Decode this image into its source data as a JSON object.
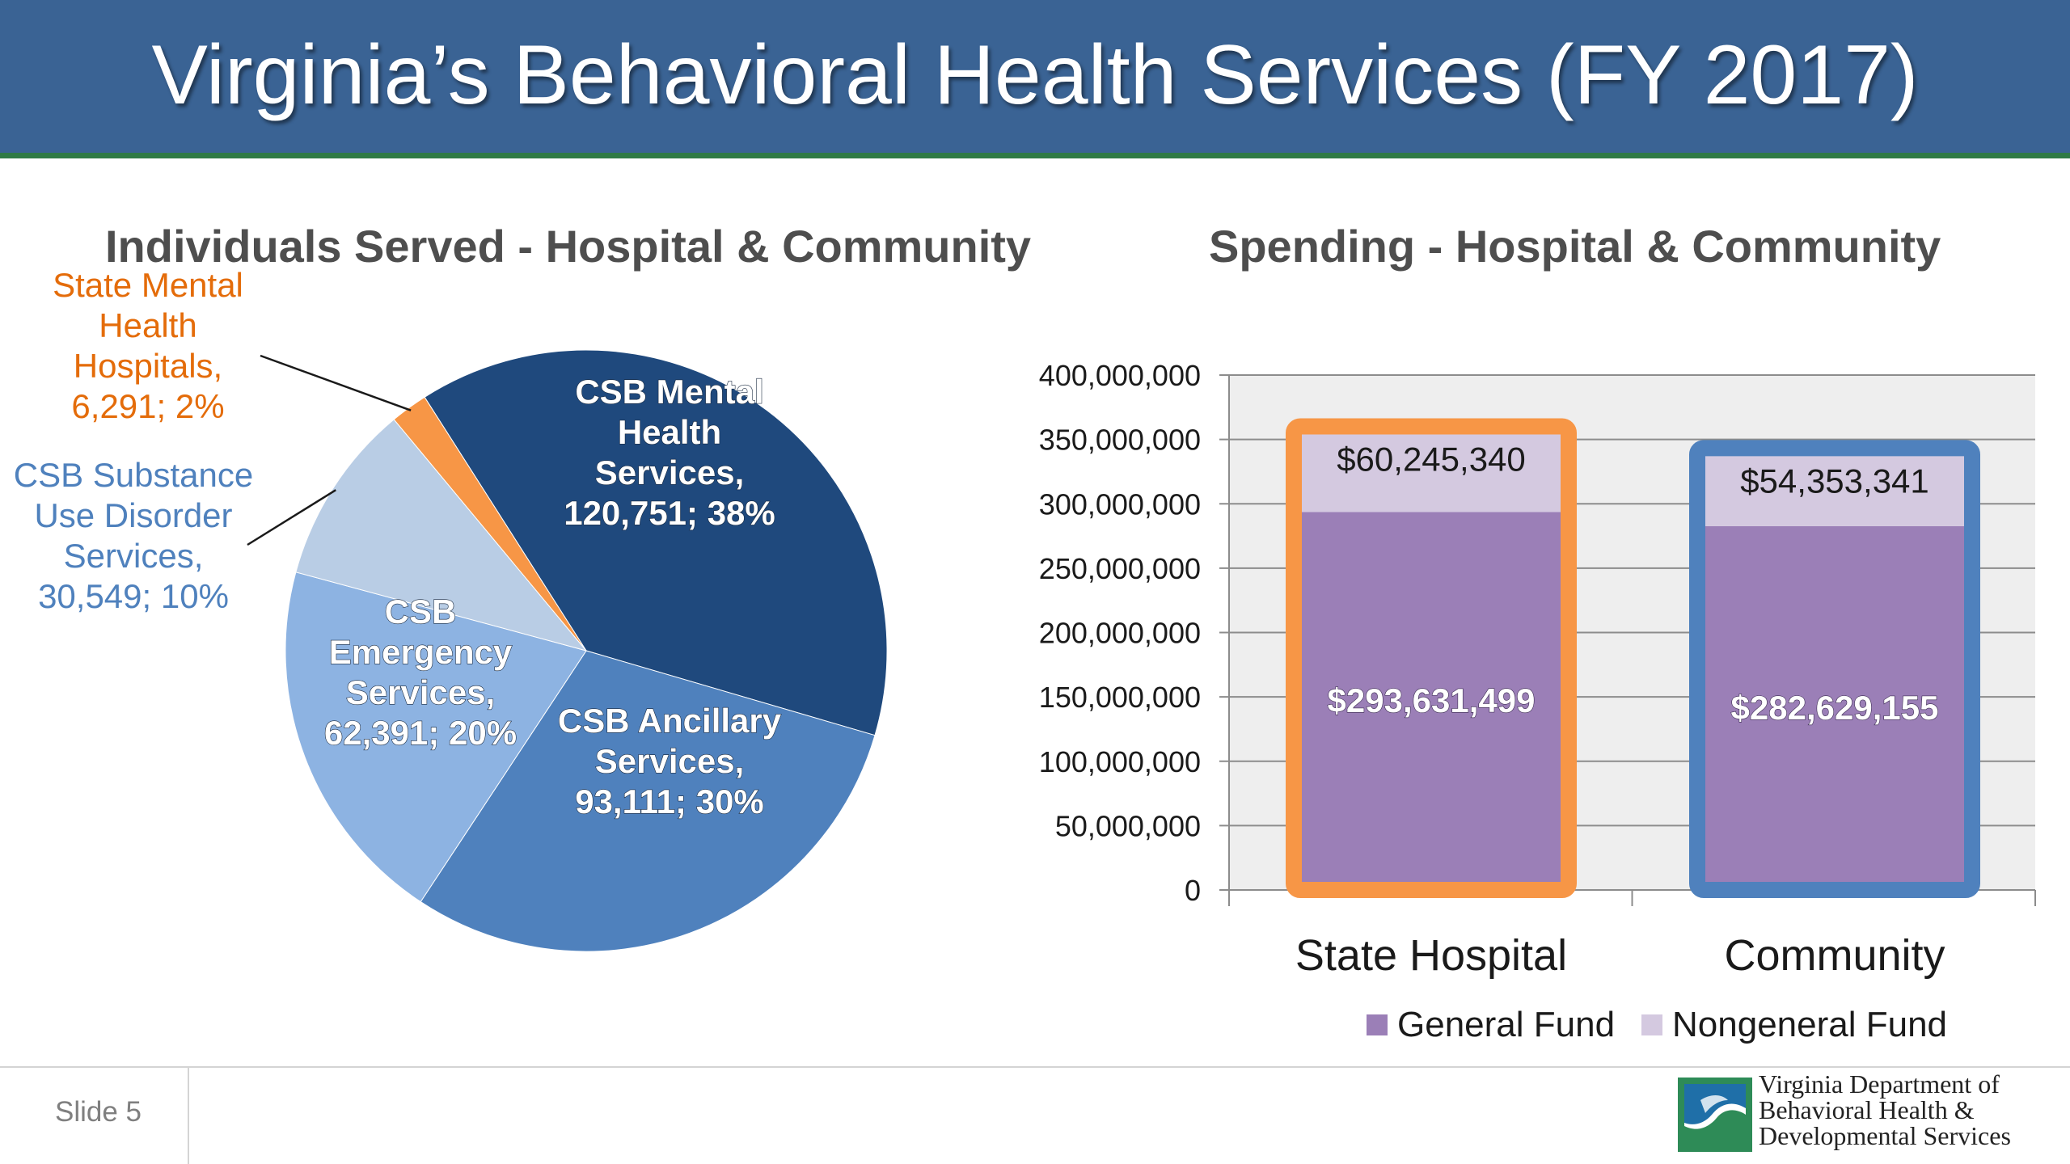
{
  "slide": {
    "title": "Virginia’s Behavioral Health Services (FY 2017)",
    "slide_number": "Slide 5",
    "logo_lines": [
      "Virginia Department of",
      "Behavioral Health &",
      "Developmental Services"
    ]
  },
  "colors": {
    "banner": "#3a6394",
    "banner_stripe": "#2f7a45",
    "state_hospital_outline": "#f79646",
    "community_outline": "#4f81bd",
    "general_fund": "#9b7fb7",
    "nongeneral_fund": "#d4c9e0"
  },
  "chart_data": [
    {
      "type": "pie",
      "title": "Individuals Served  - Hospital & Community",
      "slices": [
        {
          "name": "CSB Mental Health Services",
          "value": 120751,
          "percent": 38,
          "color": "#1f497d",
          "label_lines": [
            "CSB Mental",
            "Health",
            "Services,",
            "120,751; 38%"
          ]
        },
        {
          "name": "CSB Ancillary Services",
          "value": 93111,
          "percent": 30,
          "color": "#4f81bd",
          "label_lines": [
            "CSB Ancillary",
            "Services,",
            "93,111; 30%"
          ]
        },
        {
          "name": "CSB Emergency Services",
          "value": 62391,
          "percent": 20,
          "color": "#8db3e2",
          "label_lines": [
            "CSB",
            "Emergency",
            "Services,",
            "62,391; 20%"
          ]
        },
        {
          "name": "CSB Substance Use Disorder Services",
          "value": 30549,
          "percent": 10,
          "color": "#b9cde5",
          "label_lines": [
            "CSB Substance",
            "Use Disorder",
            "Services,",
            "30,549; 10%"
          ]
        },
        {
          "name": "State Mental Health Hospitals",
          "value": 6291,
          "percent": 2,
          "color": "#f79646",
          "label_lines": [
            "State Mental",
            "Health",
            "Hospitals,",
            "6,291; 2%"
          ]
        }
      ]
    },
    {
      "type": "bar",
      "stacked": true,
      "title": "Spending - Hospital & Community",
      "categories": [
        "State Hospital",
        "Community"
      ],
      "series": [
        {
          "name": "General Fund",
          "values": [
            293631499,
            282629155
          ],
          "labels": [
            "$293,631,499",
            "$282,629,155"
          ],
          "color": "#9b7fb7"
        },
        {
          "name": "Nongeneral Fund",
          "values": [
            60245340,
            54353341
          ],
          "labels": [
            "$60,245,340",
            "$54,353,341"
          ],
          "color": "#d4c9e0"
        }
      ],
      "ylim": [
        0,
        400000000
      ],
      "yticks": [
        "0",
        "50,000,000",
        "100,000,000",
        "150,000,000",
        "200,000,000",
        "250,000,000",
        "300,000,000",
        "350,000,000",
        "400,000,000"
      ],
      "grid": true,
      "legend_position": "bottom"
    }
  ]
}
